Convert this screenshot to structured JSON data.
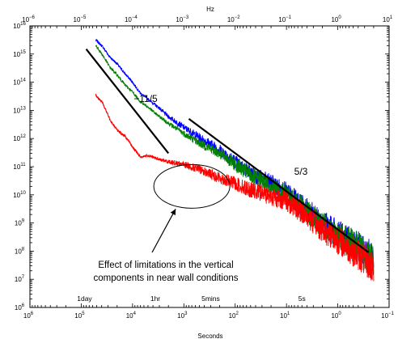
{
  "chart_data": {
    "type": "line",
    "xlabel": "Seconds",
    "x2label": "Hz",
    "xscale": "log",
    "yscale": "log",
    "x_reversed": true,
    "xlim": [
      1000000.0,
      0.1
    ],
    "ylim": [
      1000000.0,
      1e+16
    ],
    "bottom_ticks": {
      "values": [
        1000000.0,
        100000.0,
        10000.0,
        1000.0,
        100.0,
        10.0,
        1.0,
        0.1
      ],
      "mantissa": [
        "10",
        "10",
        "10",
        "10",
        "10",
        "10",
        "10",
        "10"
      ],
      "exponents": [
        "6",
        "5",
        "4",
        "3",
        "2",
        "1",
        "0",
        "−1"
      ]
    },
    "top_ticks": {
      "values": [
        1e-06,
        1e-05,
        0.0001,
        0.001,
        0.01,
        0.1,
        1.0,
        10.0
      ],
      "mantissa": [
        "10",
        "10",
        "10",
        "10",
        "10",
        "10",
        "10",
        "10"
      ],
      "exponents": [
        "−6",
        "−5",
        "−4",
        "−3",
        "−2",
        "−1",
        "0",
        "1"
      ]
    },
    "y_ticks": {
      "values": [
        1000000.0,
        10000000.0,
        100000000.0,
        1000000000.0,
        10000000000.0,
        100000000000.0,
        1000000000000.0,
        10000000000000.0,
        100000000000000.0,
        1000000000000000.0,
        1e+16
      ],
      "mantissa": [
        "10",
        "10",
        "10",
        "10",
        "10",
        "10",
        "10",
        "10",
        "10",
        "10",
        "10"
      ],
      "exponents": [
        "6",
        "7",
        "8",
        "9",
        "10",
        "11",
        "12",
        "13",
        "14",
        "15",
        "16"
      ]
    },
    "time_markers": [
      {
        "label": "1day",
        "x": 86400
      },
      {
        "label": "1hr",
        "x": 3600
      },
      {
        "label": "5mins",
        "x": 300
      },
      {
        "label": "5s",
        "x": 5
      }
    ],
    "series": [
      {
        "color": "#0000ff",
        "points": [
          [
            52000,
            3200000000000000.0
          ],
          [
            38000,
            1800000000000000.0
          ],
          [
            28000,
            800000000000000.0
          ],
          [
            20000,
            450000000000000.0
          ],
          [
            14000,
            200000000000000.0
          ],
          [
            10000,
            100000000000000.0
          ],
          [
            7000,
            40000000000000.0
          ],
          [
            5000,
            25000000000000.0
          ],
          [
            3000,
            12000000000000.0
          ],
          [
            2000,
            6000000000000.0
          ],
          [
            1000,
            2500000000000.0
          ],
          [
            500,
            1100000000000.0
          ],
          [
            200,
            400000000000.0
          ],
          [
            100,
            150000000000.0
          ],
          [
            50,
            60000000000.0
          ],
          [
            20,
            25000000000.0
          ],
          [
            10,
            12000000000.0
          ],
          [
            5,
            4000000000.0
          ],
          [
            2,
            1000000000.0
          ],
          [
            1,
            400000000.0
          ],
          [
            0.5,
            200000000.0
          ],
          [
            0.3,
            100000000.0
          ],
          [
            0.2,
            50000000.0
          ]
        ]
      },
      {
        "color": "#008000",
        "points": [
          [
            52000,
            2000000000000000.0
          ],
          [
            38000,
            900000000000000.0
          ],
          [
            28000,
            350000000000000.0
          ],
          [
            20000,
            180000000000000.0
          ],
          [
            14000,
            80000000000000.0
          ],
          [
            10000,
            45000000000000.0
          ],
          [
            7000,
            20000000000000.0
          ],
          [
            5000,
            13000000000000.0
          ],
          [
            3000,
            6000000000000.0
          ],
          [
            2000,
            3500000000000.0
          ],
          [
            1000,
            1500000000000.0
          ],
          [
            500,
            700000000000.0
          ],
          [
            200,
            300000000000.0
          ],
          [
            100,
            120000000000.0
          ],
          [
            50,
            50000000000.0
          ],
          [
            20,
            20000000000.0
          ],
          [
            10,
            10000000000.0
          ],
          [
            5,
            3500000000.0
          ],
          [
            2,
            900000000.0
          ],
          [
            1,
            350000000.0
          ],
          [
            0.5,
            170000000.0
          ],
          [
            0.3,
            90000000.0
          ],
          [
            0.2,
            45000000.0
          ]
        ]
      },
      {
        "color": "#ff0000",
        "points": [
          [
            52000,
            35000000000000.0
          ],
          [
            38000,
            18000000000000.0
          ],
          [
            28000,
            5000000000000.0
          ],
          [
            20000,
            2000000000000.0
          ],
          [
            14000,
            1200000000000.0
          ],
          [
            10000,
            500000000000.0
          ],
          [
            7000,
            220000000000.0
          ],
          [
            5000,
            250000000000.0
          ],
          [
            3000,
            180000000000.0
          ],
          [
            2000,
            150000000000.0
          ],
          [
            1000,
            120000000000.0
          ],
          [
            500,
            80000000000.0
          ],
          [
            200,
            40000000000.0
          ],
          [
            100,
            25000000000.0
          ],
          [
            50,
            15000000000.0
          ],
          [
            20,
            9000000000.0
          ],
          [
            10,
            6000000000.0
          ],
          [
            5,
            2500000000.0
          ],
          [
            2,
            600000000.0
          ],
          [
            1,
            250000000.0
          ],
          [
            0.5,
            100000000.0
          ],
          [
            0.3,
            50000000.0
          ],
          [
            0.2,
            25000000.0
          ]
        ]
      }
    ],
    "reference_lines": [
      {
        "slope_label": "−11/5",
        "from": [
          80000,
          1500000000000000.0
        ],
        "to": [
          2000,
          300000000000.0
        ]
      },
      {
        "slope_label": "5/3",
        "from": [
          800,
          5000000000000.0
        ],
        "to": [
          0.25,
          90000000.0
        ]
      }
    ],
    "annotation": {
      "lines": [
        "Effect of limitations in the vertical",
        "components in near wall conditions"
      ],
      "ellipse_center": [
        700,
        20000000000.0
      ]
    }
  }
}
